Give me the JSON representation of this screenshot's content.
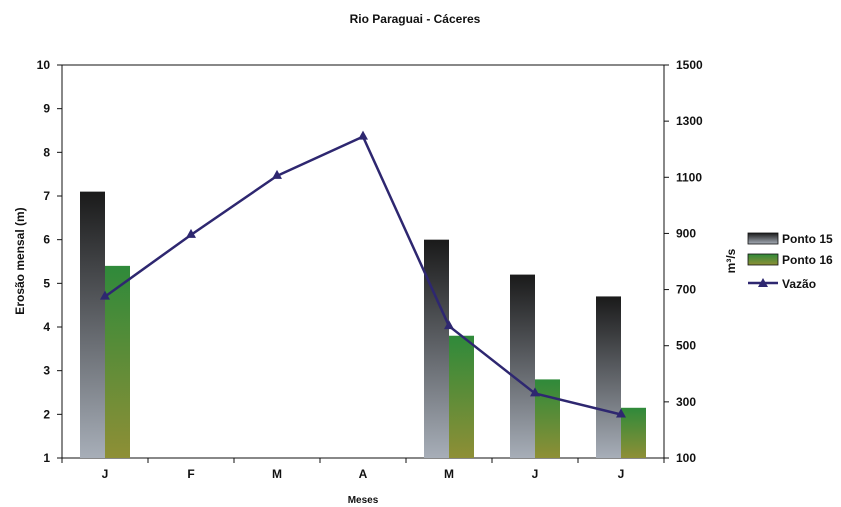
{
  "chart_data": {
    "type": "bar",
    "title": "Rio Paraguai - Cáceres",
    "xlabel": "Meses",
    "ylabel": "Erosão mensal (m)",
    "y2label": "m³/s",
    "categories": [
      "J",
      "F",
      "M",
      "A",
      "M",
      "J",
      "J"
    ],
    "ylim": [
      1,
      10
    ],
    "yticks": [
      "1",
      "2",
      "3",
      "4",
      "5",
      "6",
      "7",
      "8",
      "9",
      "10"
    ],
    "y2lim": [
      100,
      1500
    ],
    "y2ticks": [
      "100",
      "300",
      "500",
      "700",
      "900",
      "1100",
      "1300",
      "1500"
    ],
    "grid": false,
    "legend_position": "right",
    "series": [
      {
        "name": "Ponto 15",
        "kind": "bar",
        "axis": "left",
        "values": [
          7.1,
          null,
          null,
          null,
          6.0,
          5.2,
          4.7
        ]
      },
      {
        "name": "Ponto 16",
        "kind": "bar",
        "axis": "left",
        "values": [
          5.4,
          null,
          null,
          null,
          3.8,
          2.8,
          2.15
        ]
      },
      {
        "name": "Vazão",
        "kind": "line",
        "axis": "right",
        "marker": "triangle",
        "values": [
          675,
          895,
          1105,
          1245,
          570,
          330,
          255
        ]
      }
    ],
    "colors": {
      "ponto15_top": "#1a1a1a",
      "ponto15_bottom": "#a7aeb8",
      "ponto16_top": "#2f8a3a",
      "ponto16_bottom": "#8e8f36",
      "vazao": "#2e2770"
    }
  }
}
